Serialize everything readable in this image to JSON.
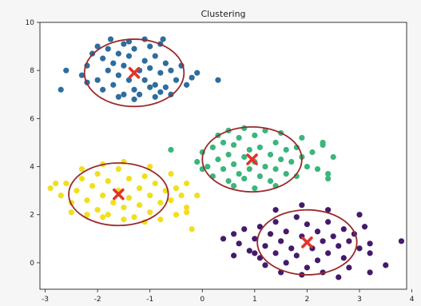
{
  "chart_data": {
    "type": "scatter",
    "title": "Clustering",
    "xlabel": "",
    "ylabel": "",
    "xlim": [
      -3.1,
      3.9
    ],
    "ylim": [
      -1.1,
      10.0
    ],
    "xticks": [
      -3,
      -2,
      -1,
      0,
      1,
      2,
      3,
      4
    ],
    "yticks": [
      0,
      2,
      4,
      6,
      8,
      10
    ],
    "grid": false,
    "legend": "none",
    "clusters": [
      {
        "color": "#2e6d9e",
        "center": [
          -1.3,
          7.9
        ],
        "ellipse_radius": [
          0.95,
          1.4
        ],
        "points": [
          [
            -2.2,
            8.2
          ],
          [
            -2.1,
            8.7
          ],
          [
            -2.0,
            9.0
          ],
          [
            -1.9,
            8.5
          ],
          [
            -1.8,
            8.0
          ],
          [
            -1.8,
            8.9
          ],
          [
            -1.7,
            8.3
          ],
          [
            -1.6,
            8.7
          ],
          [
            -1.5,
            9.1
          ],
          [
            -1.5,
            8.2
          ],
          [
            -1.4,
            7.6
          ],
          [
            -1.4,
            8.6
          ],
          [
            -1.3,
            8.9
          ],
          [
            -1.3,
            7.2
          ],
          [
            -1.2,
            8.0
          ],
          [
            -1.1,
            8.4
          ],
          [
            -1.1,
            7.6
          ],
          [
            -1.0,
            9.0
          ],
          [
            -1.0,
            8.1
          ],
          [
            -0.9,
            7.4
          ],
          [
            -0.9,
            8.6
          ],
          [
            -0.8,
            7.9
          ],
          [
            -0.7,
            8.3
          ],
          [
            -0.7,
            7.3
          ],
          [
            -0.6,
            8.0
          ],
          [
            -0.5,
            7.6
          ],
          [
            -0.4,
            8.2
          ],
          [
            -1.7,
            7.4
          ],
          [
            -1.6,
            7.8
          ],
          [
            -1.5,
            7.0
          ],
          [
            -1.2,
            7.0
          ],
          [
            -1.0,
            7.3
          ],
          [
            -0.8,
            7.1
          ],
          [
            -2.3,
            7.8
          ],
          [
            -2.0,
            7.6
          ],
          [
            -1.9,
            7.2
          ],
          [
            -1.6,
            6.9
          ],
          [
            -1.3,
            6.8
          ],
          [
            -0.9,
            6.9
          ],
          [
            -0.6,
            7.0
          ],
          [
            -1.4,
            9.2
          ],
          [
            -1.1,
            9.3
          ],
          [
            -0.8,
            9.1
          ],
          [
            -2.7,
            7.2
          ],
          [
            -0.2,
            7.7
          ],
          [
            0.3,
            7.6
          ],
          [
            -0.1,
            7.9
          ],
          [
            -2.6,
            8.0
          ],
          [
            -1.75,
            9.3
          ],
          [
            -0.75,
            9.3
          ],
          [
            -0.3,
            7.4
          ],
          [
            -2.2,
            7.5
          ]
        ]
      },
      {
        "color": "#3cb57c",
        "center": [
          0.95,
          4.3
        ],
        "ellipse_radius": [
          0.95,
          1.35
        ],
        "points": [
          [
            0.0,
            4.6
          ],
          [
            0.1,
            4.0
          ],
          [
            0.2,
            4.8
          ],
          [
            0.2,
            3.6
          ],
          [
            0.3,
            4.3
          ],
          [
            0.4,
            5.0
          ],
          [
            0.4,
            3.9
          ],
          [
            0.5,
            4.5
          ],
          [
            0.5,
            3.4
          ],
          [
            0.6,
            4.9
          ],
          [
            0.6,
            4.1
          ],
          [
            0.7,
            3.7
          ],
          [
            0.7,
            5.2
          ],
          [
            0.8,
            4.4
          ],
          [
            0.8,
            3.5
          ],
          [
            0.9,
            4.7
          ],
          [
            0.9,
            3.9
          ],
          [
            1.0,
            5.3
          ],
          [
            1.0,
            4.2
          ],
          [
            1.1,
            3.6
          ],
          [
            1.1,
            4.8
          ],
          [
            1.2,
            4.0
          ],
          [
            1.3,
            4.5
          ],
          [
            1.3,
            3.4
          ],
          [
            1.4,
            5.0
          ],
          [
            1.4,
            3.9
          ],
          [
            1.5,
            4.3
          ],
          [
            1.6,
            4.7
          ],
          [
            1.6,
            3.7
          ],
          [
            1.7,
            4.2
          ],
          [
            1.8,
            4.8
          ],
          [
            1.8,
            3.6
          ],
          [
            1.9,
            4.4
          ],
          [
            2.0,
            4.0
          ],
          [
            2.1,
            4.6
          ],
          [
            0.3,
            5.3
          ],
          [
            0.5,
            5.5
          ],
          [
            0.8,
            5.6
          ],
          [
            1.2,
            5.5
          ],
          [
            1.5,
            5.4
          ],
          [
            1.9,
            5.2
          ],
          [
            -0.1,
            4.2
          ],
          [
            2.2,
            3.9
          ],
          [
            2.3,
            4.9
          ],
          [
            2.4,
            3.5
          ],
          [
            2.5,
            4.4
          ],
          [
            2.3,
            5.0
          ],
          [
            2.4,
            3.7
          ],
          [
            -0.6,
            4.7
          ],
          [
            0.0,
            3.9
          ],
          [
            1.0,
            3.1
          ],
          [
            0.6,
            3.2
          ],
          [
            1.4,
            3.2
          ]
        ]
      },
      {
        "color": "#f1df1e",
        "center": [
          -1.6,
          2.85
        ],
        "ellipse_radius": [
          0.95,
          1.3
        ],
        "points": [
          [
            -2.9,
            3.1
          ],
          [
            -2.7,
            2.8
          ],
          [
            -2.6,
            3.3
          ],
          [
            -2.5,
            2.5
          ],
          [
            -2.4,
            3.0
          ],
          [
            -2.3,
            3.5
          ],
          [
            -2.2,
            2.6
          ],
          [
            -2.1,
            3.2
          ],
          [
            -2.0,
            2.2
          ],
          [
            -2.0,
            3.7
          ],
          [
            -1.9,
            2.8
          ],
          [
            -1.8,
            3.4
          ],
          [
            -1.8,
            2.0
          ],
          [
            -1.7,
            2.5
          ],
          [
            -1.6,
            3.9
          ],
          [
            -1.6,
            3.0
          ],
          [
            -1.5,
            2.3
          ],
          [
            -1.4,
            3.5
          ],
          [
            -1.4,
            2.7
          ],
          [
            -1.3,
            1.9
          ],
          [
            -1.2,
            3.1
          ],
          [
            -1.2,
            2.4
          ],
          [
            -1.1,
            3.6
          ],
          [
            -1.0,
            2.8
          ],
          [
            -1.0,
            2.1
          ],
          [
            -0.9,
            3.3
          ],
          [
            -0.8,
            2.5
          ],
          [
            -0.7,
            3.0
          ],
          [
            -0.6,
            2.6
          ],
          [
            -0.5,
            3.1
          ],
          [
            -0.4,
            2.8
          ],
          [
            -0.3,
            3.3
          ],
          [
            -0.3,
            2.3
          ],
          [
            -0.5,
            2.0
          ],
          [
            -0.8,
            1.8
          ],
          [
            -1.1,
            1.7
          ],
          [
            -1.5,
            1.8
          ],
          [
            -1.9,
            1.9
          ],
          [
            -2.2,
            2.0
          ],
          [
            -2.5,
            2.1
          ],
          [
            -2.3,
            3.9
          ],
          [
            -1.9,
            4.1
          ],
          [
            -1.5,
            4.2
          ],
          [
            -1.0,
            4.0
          ],
          [
            -0.6,
            3.7
          ],
          [
            -0.1,
            2.8
          ],
          [
            -0.2,
            1.4
          ],
          [
            -0.3,
            2.1
          ],
          [
            -2.8,
            3.3
          ]
        ]
      },
      {
        "color": "#441a6a",
        "center": [
          2.0,
          0.85
        ],
        "ellipse_radius": [
          0.95,
          1.35
        ],
        "points": [
          [
            0.6,
            1.2
          ],
          [
            0.7,
            0.8
          ],
          [
            0.8,
            1.4
          ],
          [
            0.9,
            0.5
          ],
          [
            1.0,
            1.0
          ],
          [
            1.1,
            1.5
          ],
          [
            1.1,
            0.2
          ],
          [
            1.2,
            0.7
          ],
          [
            1.3,
            1.2
          ],
          [
            1.4,
            0.4
          ],
          [
            1.4,
            1.7
          ],
          [
            1.5,
            0.9
          ],
          [
            1.6,
            0.0
          ],
          [
            1.6,
            1.3
          ],
          [
            1.7,
            0.6
          ],
          [
            1.8,
            1.9
          ],
          [
            1.8,
            0.3
          ],
          [
            1.9,
            1.1
          ],
          [
            2.0,
            -0.2
          ],
          [
            2.0,
            1.6
          ],
          [
            2.1,
            0.6
          ],
          [
            2.2,
            1.3
          ],
          [
            2.2,
            0.1
          ],
          [
            2.3,
            0.9
          ],
          [
            2.4,
            1.7
          ],
          [
            2.4,
            0.4
          ],
          [
            2.5,
            1.1
          ],
          [
            2.6,
            0.7
          ],
          [
            2.7,
            1.4
          ],
          [
            2.7,
            0.2
          ],
          [
            2.8,
            0.9
          ],
          [
            2.9,
            1.2
          ],
          [
            3.0,
            0.6
          ],
          [
            3.1,
            1.5
          ],
          [
            3.2,
            0.4
          ],
          [
            1.2,
            -0.1
          ],
          [
            1.5,
            -0.4
          ],
          [
            1.9,
            -0.5
          ],
          [
            2.3,
            -0.4
          ],
          [
            2.6,
            -0.6
          ],
          [
            1.4,
            2.2
          ],
          [
            1.9,
            2.4
          ],
          [
            2.4,
            2.2
          ],
          [
            0.4,
            1.0
          ],
          [
            0.6,
            0.3
          ],
          [
            3.0,
            2.0
          ],
          [
            3.2,
            0.8
          ],
          [
            3.5,
            -0.1
          ],
          [
            3.8,
            0.9
          ],
          [
            3.2,
            -0.4
          ],
          [
            2.8,
            -0.2
          ],
          [
            1.0,
            0.4
          ]
        ]
      }
    ]
  }
}
